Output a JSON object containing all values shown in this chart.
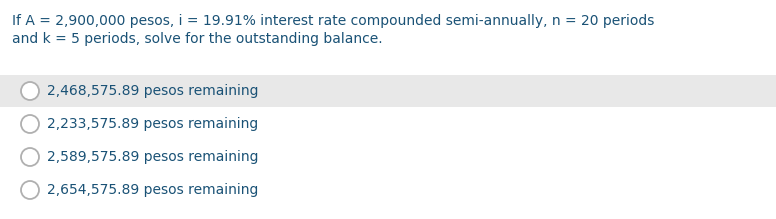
{
  "question_line1": "If A = 2,900,000 pesos, i = 19.91% interest rate compounded semi-annually, n = 20 periods",
  "question_line2": "and k = 5 periods, solve for the outstanding balance.",
  "options": [
    "2,468,575.89 pesos remaining",
    "2,233,575.89 pesos remaining",
    "2,589,575.89 pesos remaining",
    "2,654,575.89 pesos remaining"
  ],
  "highlighted_option": 0,
  "bg_color": "#ffffff",
  "highlight_color": "#e8e8e8",
  "question_color": "#1a5276",
  "option_color": "#1a5276",
  "font_size_question": 10.0,
  "font_size_option": 10.0,
  "fig_width": 7.76,
  "fig_height": 2.19,
  "dpi": 100
}
